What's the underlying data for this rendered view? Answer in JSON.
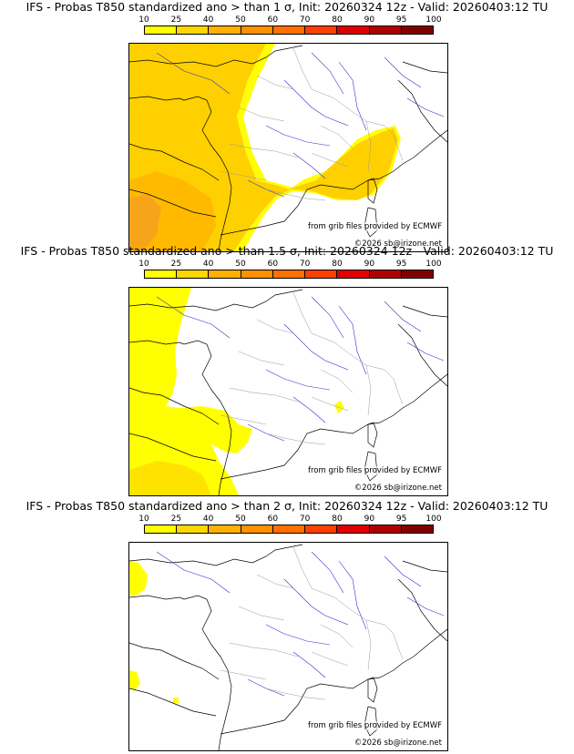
{
  "legend": {
    "ticks": [
      "10",
      "25",
      "40",
      "50",
      "60",
      "70",
      "80",
      "90",
      "95",
      "100"
    ],
    "colors": [
      "#ffff00",
      "#ffd700",
      "#ffb000",
      "#ff9000",
      "#ff7000",
      "#ff4000",
      "#e00000",
      "#b00000",
      "#800000"
    ]
  },
  "colors": {
    "coast": "#000000",
    "rivers": "#3333cc",
    "borders": "#999999",
    "prob_low": "#ffff00",
    "prob_mid": "#ffd000",
    "prob_high": "#ffb000",
    "prob_top": "#f4a020"
  },
  "panels": [
    {
      "title": "IFS - Probas T850  standardized ano > than 1 σ, Init: 20260324 12z - Valid: 20260403:12 TU",
      "credit_grib": "from grib files provided by ECMWF",
      "credit_copy": "©2026 sb@irizone.net"
    },
    {
      "title": "IFS - Probas T850  standardized ano > than 1.5 σ, Init: 20260324 12z - Valid: 20260403:12 TU",
      "credit_grib": "from grib files provided by ECMWF",
      "credit_copy": "©2026 sb@irizone.net"
    },
    {
      "title": "IFS - Probas T850  standardized ano > than 2 σ, Init: 20260324 12z - Valid: 20260403:12 TU",
      "credit_grib": "from grib files provided by ECMWF",
      "credit_copy": "©2026 sb@irizone.net"
    }
  ]
}
